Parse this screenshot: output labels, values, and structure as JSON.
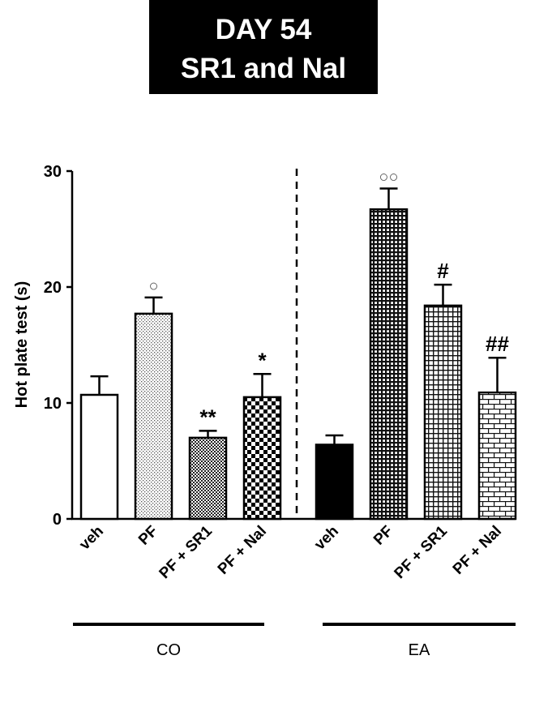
{
  "chart_data": {
    "type": "bar",
    "title": "DAY 54\nSR1 and Nal",
    "title_lines": [
      "DAY 54",
      "SR1 and Nal"
    ],
    "ylabel": "Hot plate test (s)",
    "xlabel": "",
    "ylim": [
      0,
      30
    ],
    "yticks": [
      0,
      10,
      20,
      30
    ],
    "grid": false,
    "legend": "none",
    "groups": [
      {
        "name": "CO",
        "bars": [
          {
            "label": "veh",
            "value": 10.7,
            "error": 1.6,
            "pattern": "white",
            "annotation": ""
          },
          {
            "label": "PF",
            "value": 17.7,
            "error": 1.4,
            "pattern": "dots",
            "annotation": "○"
          },
          {
            "label": "PF + SR1",
            "value": 7.0,
            "error": 0.6,
            "pattern": "fine-check",
            "annotation": "**"
          },
          {
            "label": "PF + Nal",
            "value": 10.5,
            "error": 2.0,
            "pattern": "check",
            "annotation": "*"
          }
        ]
      },
      {
        "name": "EA",
        "bars": [
          {
            "label": "veh",
            "value": 6.4,
            "error": 0.8,
            "pattern": "black",
            "annotation": ""
          },
          {
            "label": "PF",
            "value": 26.7,
            "error": 1.8,
            "pattern": "dense-grid",
            "annotation": "○○"
          },
          {
            "label": "PF + SR1",
            "value": 18.4,
            "error": 1.8,
            "pattern": "grid",
            "annotation": "#"
          },
          {
            "label": "PF + Nal",
            "value": 10.9,
            "error": 3.0,
            "pattern": "brick",
            "annotation": "##"
          }
        ]
      }
    ]
  }
}
